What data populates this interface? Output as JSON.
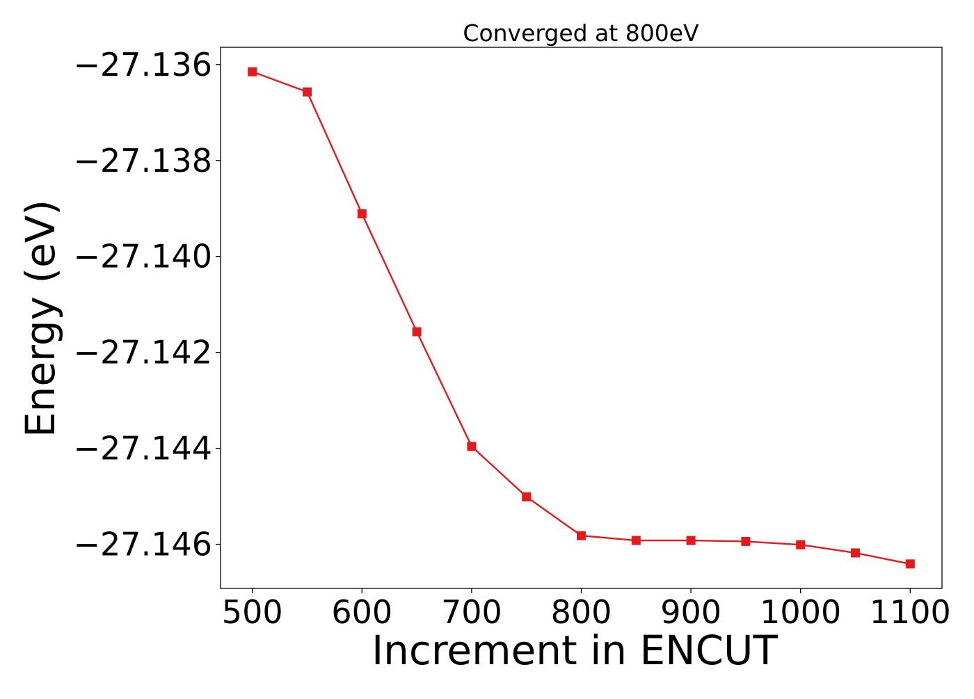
{
  "chart_data": {
    "type": "line",
    "title": "Converged at 800eV",
    "xlabel": "Increment in ENCUT",
    "ylabel": "Energy (eV)",
    "x": [
      500,
      550,
      600,
      650,
      700,
      750,
      800,
      850,
      900,
      950,
      1000,
      1050,
      1100
    ],
    "series": [
      {
        "values": [
          -27.13615,
          -27.13657,
          -27.13911,
          -27.14157,
          -27.14396,
          -27.14501,
          -27.14582,
          -27.14592,
          -27.14592,
          -27.14594,
          -27.14601,
          -27.14618,
          -27.14641
        ],
        "color": "#e41a1c",
        "marker": "square"
      }
    ],
    "xlim": [
      471,
      1129
    ],
    "ylim": [
      -27.14692,
      -27.13564
    ],
    "xticks": [
      500,
      600,
      700,
      800,
      900,
      1000,
      1100
    ],
    "xtick_labels": [
      "500",
      "600",
      "700",
      "800",
      "900",
      "1000",
      "1100"
    ],
    "yticks": [
      -27.136,
      -27.138,
      -27.14,
      -27.142,
      -27.144,
      -27.146
    ],
    "ytick_labels": [
      "−27.136",
      "−27.138",
      "−27.140",
      "−27.142",
      "−27.144",
      "−27.146"
    ],
    "grid": false,
    "legend": "none"
  }
}
